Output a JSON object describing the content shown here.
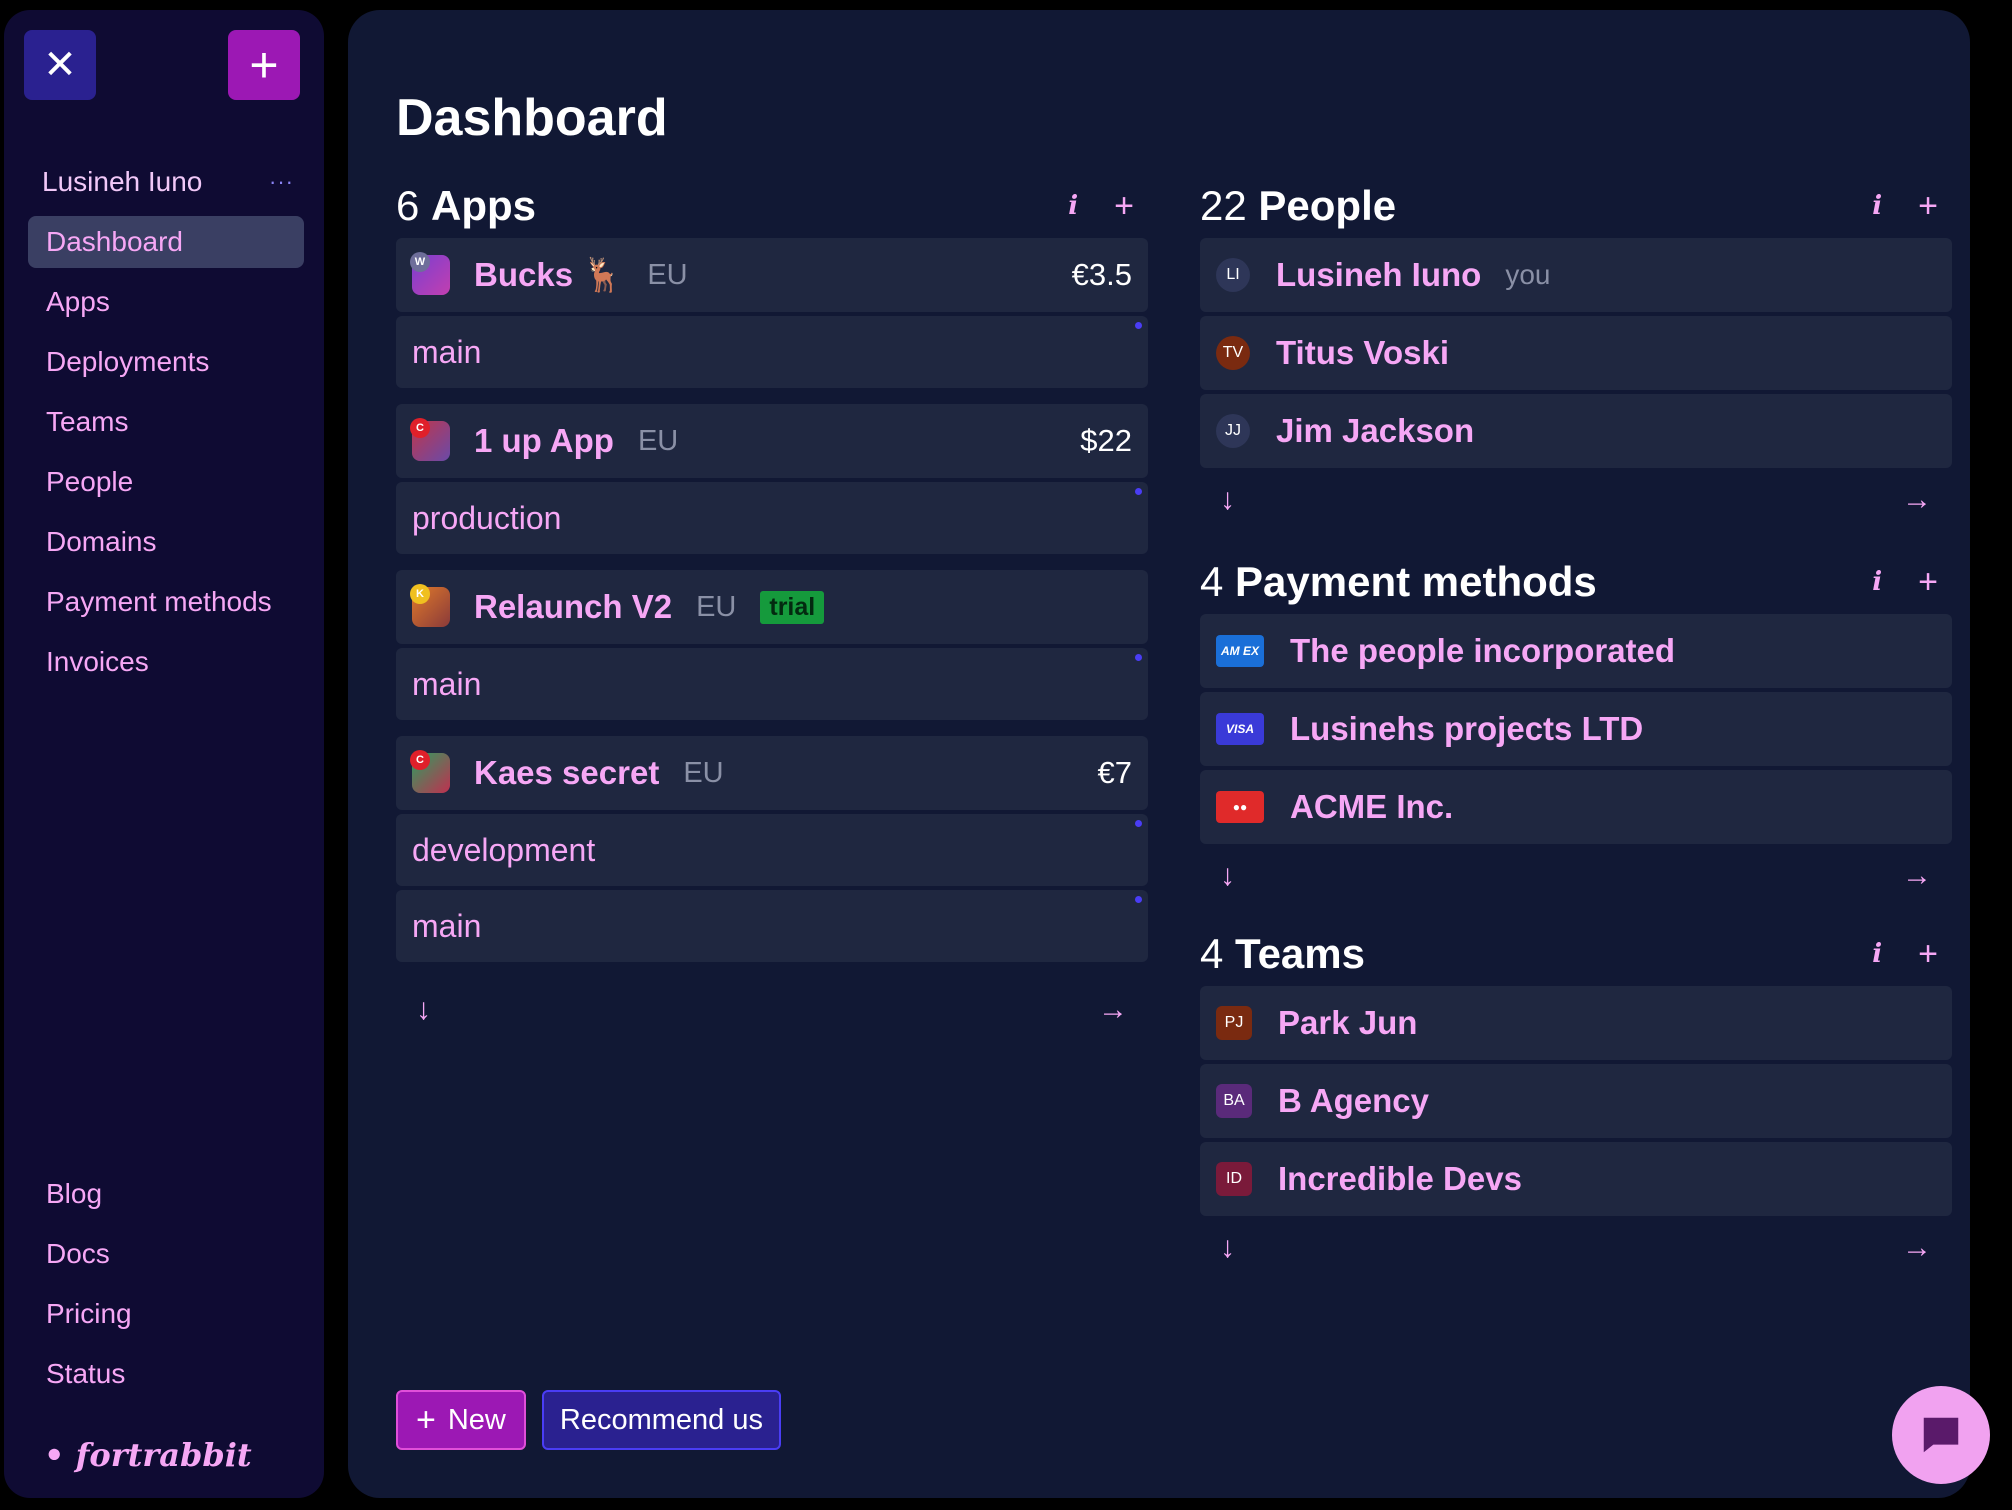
{
  "sidebar": {
    "close_glyph": "✕",
    "add_glyph": "+",
    "user_name": "Lusineh Iuno",
    "user_more": "···",
    "nav": [
      {
        "label": "Dashboard",
        "active": true
      },
      {
        "label": "Apps"
      },
      {
        "label": "Deployments"
      },
      {
        "label": "Teams"
      },
      {
        "label": "People"
      },
      {
        "label": "Domains"
      },
      {
        "label": "Payment methods"
      },
      {
        "label": "Invoices"
      }
    ],
    "nav_bottom": [
      {
        "label": "Blog"
      },
      {
        "label": "Docs"
      },
      {
        "label": "Pricing"
      },
      {
        "label": "Status"
      }
    ],
    "brand": "• fortrabbit"
  },
  "main": {
    "title": "Dashboard",
    "apps": {
      "count": "6",
      "label": "Apps",
      "info": "i",
      "plus": "+",
      "items": [
        {
          "name": "Bucks 🦌",
          "region": "EU",
          "price": "€3.5",
          "icon_badge": "W",
          "icon_colors": [
            "#7a3fd0",
            "#c23fb0"
          ],
          "badge_bg": "#6e6e9a",
          "envs": [
            "main"
          ]
        },
        {
          "name": "1 up App",
          "region": "EU",
          "price": "$22",
          "icon_badge": "C",
          "icon_colors": [
            "#c0364a",
            "#6a4aa8"
          ],
          "badge_bg": "#e0202a",
          "envs": [
            "production"
          ]
        },
        {
          "name": "Relaunch V2",
          "region": "EU",
          "trial": "trial",
          "icon_badge": "K",
          "icon_colors": [
            "#e07a2a",
            "#8a3a3a"
          ],
          "badge_bg": "#f0c020",
          "envs": [
            "main"
          ]
        },
        {
          "name": "Kaes secret",
          "region": "EU",
          "price": "€7",
          "icon_badge": "C",
          "icon_colors": [
            "#2aa060",
            "#c03050"
          ],
          "badge_bg": "#e0202a",
          "envs": [
            "development",
            "main"
          ]
        }
      ],
      "arrow_down": "↓",
      "arrow_right": "→"
    },
    "people": {
      "count": "22",
      "label": "People",
      "info": "i",
      "plus": "+",
      "items": [
        {
          "initials": "LI",
          "name": "Lusineh Iuno",
          "sub": "you",
          "color": "#2e3658"
        },
        {
          "initials": "TV",
          "name": "Titus Voski",
          "color": "#7a2a10"
        },
        {
          "initials": "JJ",
          "name": "Jim Jackson",
          "color": "#2e3658"
        }
      ],
      "arrow_down": "↓",
      "arrow_right": "→"
    },
    "payment": {
      "count": "4",
      "label": "Payment methods",
      "info": "i",
      "plus": "+",
      "items": [
        {
          "card": "AM EX",
          "name": "The people incorporated",
          "color": "#1a6fd8"
        },
        {
          "card": "VISA",
          "name": "Lusinehs projects LTD",
          "color": "#3a3ad8"
        },
        {
          "card": "●●",
          "name": "ACME Inc.",
          "color": "#e02a2a"
        }
      ],
      "arrow_down": "↓",
      "arrow_right": "→"
    },
    "teams": {
      "count": "4",
      "label": "Teams",
      "info": "i",
      "plus": "+",
      "items": [
        {
          "initials": "PJ",
          "name": "Park Jun",
          "color": "#7a2a10"
        },
        {
          "initials": "BA",
          "name": "B Agency",
          "color": "#5a2a7a"
        },
        {
          "initials": "ID",
          "name": "Incredible Devs",
          "color": "#7a1a3a"
        }
      ],
      "arrow_down": "↓",
      "arrow_right": "→"
    },
    "new_button": "New",
    "new_plus": "+",
    "recommend_button": "Recommend us"
  }
}
